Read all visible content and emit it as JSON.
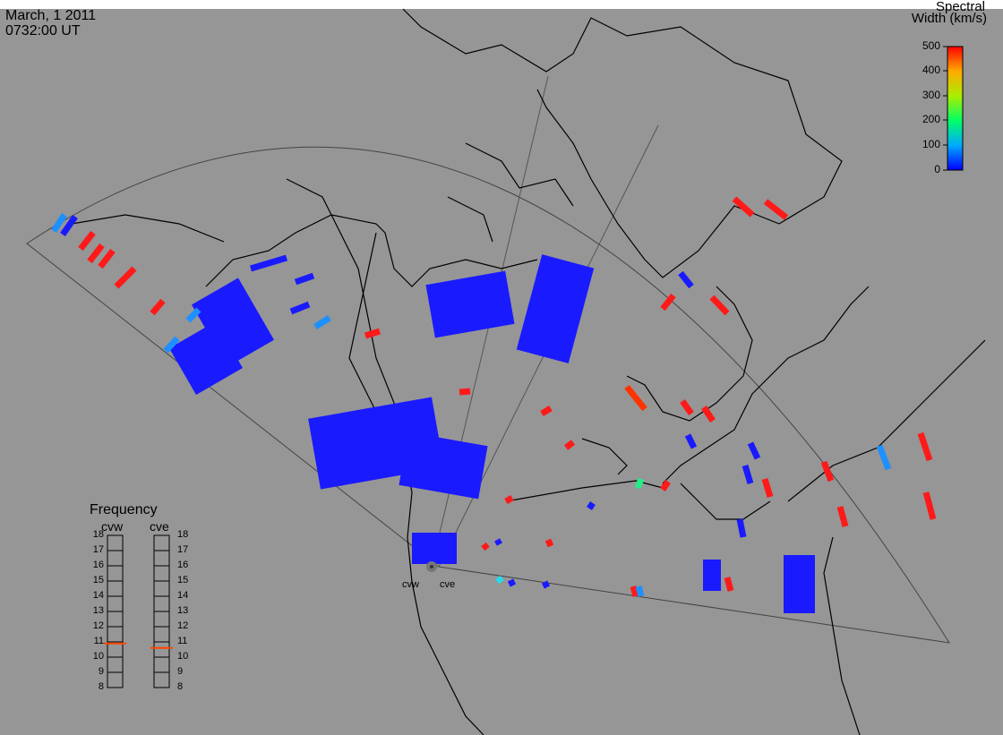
{
  "title": "March, 1 2011",
  "time": "0732:00 UT",
  "colorbar": {
    "title_line1": "Spectral",
    "title_line2": "Width (km/s)",
    "ticks": [
      "500",
      "400",
      "300",
      "200",
      "100",
      "0"
    ],
    "min": 0,
    "max": 500
  },
  "frequency": {
    "title": "Frequency",
    "left_label": "cvw",
    "right_label": "cve",
    "scale": [
      "18",
      "17",
      "16",
      "15",
      "14",
      "13",
      "12",
      "11",
      "10",
      "9",
      "8"
    ],
    "cvw_value": 10.9,
    "cve_value": 10.6
  },
  "sites": {
    "west": "cvw",
    "east": "cve"
  },
  "colors": {
    "background": "#969696",
    "low": "#1a1aff",
    "mid_low": "#1e90ff",
    "high": "#ff1a1a"
  }
}
